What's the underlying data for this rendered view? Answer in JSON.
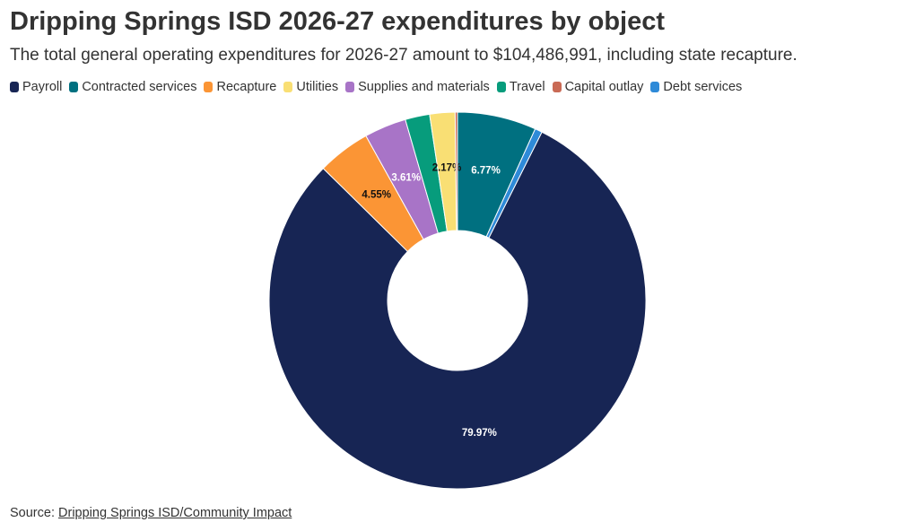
{
  "colors": {
    "payroll": "#172554",
    "contracted": "#007080",
    "recapture": "#fb9535",
    "utilities": "#f9df74",
    "supplies": "#a874c7",
    "travel": "#079c7c",
    "capital": "#c96a55",
    "debt": "#2e8ad8"
  },
  "source": {
    "prefix": "Source:",
    "link_text": "Dripping Springs ISD/Community Impact"
  },
  "chart_data": {
    "type": "pie",
    "donut": true,
    "title": "Dripping Springs ISD 2026-27 expenditures by object",
    "subtitle": "The total general operating expenditures for 2026-27 amount to $104,486,991, including state recapture.",
    "legend_position": "top",
    "series": [
      {
        "name": "Payroll",
        "value": 79.97,
        "label": "79.97%",
        "color_key": "payroll",
        "label_color": "#ffffff"
      },
      {
        "name": "Contracted services",
        "value": 6.77,
        "label": "6.77%",
        "color_key": "contracted",
        "label_color": "#ffffff"
      },
      {
        "name": "Recapture",
        "value": 4.55,
        "label": "4.55%",
        "color_key": "recapture",
        "label_color": "#111111"
      },
      {
        "name": "Utilities",
        "value": 2.17,
        "label": "2.17%",
        "color_key": "utilities",
        "label_color": "#111111"
      },
      {
        "name": "Supplies and materials",
        "value": 3.61,
        "label": "3.61%",
        "color_key": "supplies",
        "label_color": "#ffffff"
      },
      {
        "name": "Travel",
        "value": 2.1,
        "label": "",
        "color_key": "travel",
        "label_color": "#ffffff"
      },
      {
        "name": "Capital outlay",
        "value": 0.2,
        "label": "",
        "color_key": "capital",
        "label_color": "#ffffff"
      },
      {
        "name": "Debt services",
        "value": 0.63,
        "label": "",
        "color_key": "debt",
        "label_color": "#ffffff"
      }
    ],
    "slice_order": [
      "Contracted services",
      "Debt services",
      "Payroll",
      "Recapture",
      "Supplies and materials",
      "Travel",
      "Utilities",
      "Capital outlay"
    ]
  }
}
